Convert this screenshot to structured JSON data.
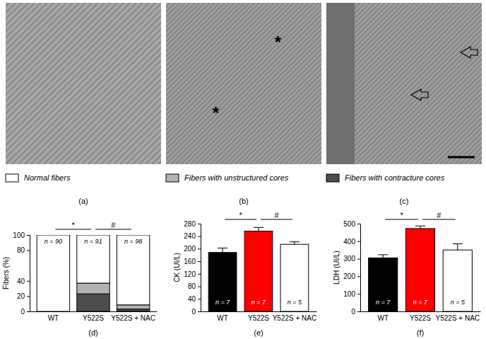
{
  "images": [
    {
      "panel": "(a)"
    },
    {
      "panel": "(b)",
      "annotations": [
        "*",
        "*"
      ]
    },
    {
      "panel": "(c)"
    }
  ],
  "chart_data": [
    {
      "type": "bar",
      "stacked": true,
      "panel": "(d)",
      "y_label": "Fibers (%)",
      "categories": [
        "WT",
        "Y522S",
        "Y522S + NAC"
      ],
      "series": [
        {
          "name": "Fibers with contracture cores",
          "color": "#4d4d4d",
          "values": [
            0,
            23,
            3
          ]
        },
        {
          "name": "Fibers with unstructured cores",
          "color": "#b3b3b3",
          "values": [
            0,
            14,
            5.5
          ]
        },
        {
          "name": "Normal fibers",
          "color": "#ffffff",
          "values": [
            100,
            63,
            91.5
          ]
        }
      ],
      "ylim": [
        0,
        100
      ],
      "yticks": [
        0,
        20,
        40,
        80,
        100
      ],
      "legend": "top",
      "annotations": [
        "n = 90",
        "n = 91",
        "n = 98"
      ],
      "significance": [
        {
          "from": "WT",
          "to": "Y522S",
          "label": "*"
        },
        {
          "from": "Y522S",
          "to": "Y522S + NAC",
          "label": "#"
        }
      ]
    },
    {
      "type": "bar",
      "panel": "(e)",
      "y_label": "CK (UI/L)",
      "categories": [
        "WT",
        "Y522S",
        "Y522S + NAC"
      ],
      "values": [
        188,
        256,
        214
      ],
      "errors": [
        14,
        12,
        8
      ],
      "colors": [
        "#000000",
        "#ff0000",
        "#ffffff"
      ],
      "ylim": [
        0,
        280
      ],
      "yticks": [
        0,
        40,
        80,
        120,
        160,
        200,
        240,
        280
      ],
      "annotations": [
        "n = 7",
        "n = 7",
        "n = 5"
      ],
      "significance": [
        {
          "from": "WT",
          "to": "Y522S",
          "label": "*"
        },
        {
          "from": "Y522S",
          "to": "Y522S + NAC",
          "label": "#"
        }
      ]
    },
    {
      "type": "bar",
      "panel": "(f)",
      "y_label": "LDH (UI/L)",
      "categories": [
        "WT",
        "Y522S",
        "Y522S + NAC"
      ],
      "values": [
        305,
        472,
        350
      ],
      "errors": [
        18,
        15,
        35
      ],
      "colors": [
        "#000000",
        "#ff0000",
        "#ffffff"
      ],
      "ylim": [
        0,
        500
      ],
      "yticks": [
        0,
        100,
        200,
        300,
        400,
        500
      ],
      "annotations": [
        "n = 7",
        "n = 7",
        "n = 5"
      ],
      "significance": [
        {
          "from": "WT",
          "to": "Y522S",
          "label": "*"
        },
        {
          "from": "Y522S",
          "to": "Y522S + NAC",
          "label": "#"
        }
      ]
    }
  ]
}
